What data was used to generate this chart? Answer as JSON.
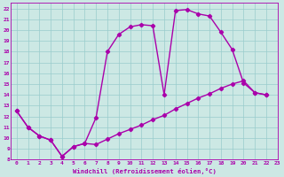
{
  "xlabel": "Windchill (Refroidissement éolien,°C)",
  "bg_color": "#cce8e4",
  "line_color": "#aa00aa",
  "grid_color": "#99cccc",
  "xlim": [
    -0.5,
    23
  ],
  "ylim": [
    8,
    22.5
  ],
  "xticks": [
    0,
    1,
    2,
    3,
    4,
    5,
    6,
    7,
    8,
    9,
    10,
    11,
    12,
    13,
    14,
    15,
    16,
    17,
    18,
    19,
    20,
    21,
    22,
    23
  ],
  "yticks": [
    8,
    9,
    10,
    11,
    12,
    13,
    14,
    15,
    16,
    17,
    18,
    19,
    20,
    21,
    22
  ],
  "upper_x": [
    0,
    1,
    2,
    3,
    4,
    5,
    6,
    7,
    8,
    9,
    10,
    11,
    12,
    13,
    14,
    15,
    16,
    17,
    18,
    19,
    20,
    21,
    22
  ],
  "upper_y": [
    12.5,
    11.0,
    10.2,
    9.8,
    8.3,
    9.2,
    9.5,
    11.9,
    18.0,
    19.6,
    20.3,
    20.5,
    20.4,
    14.0,
    21.8,
    21.9,
    21.5,
    21.3,
    19.8,
    18.2,
    15.1,
    14.2,
    14.0
  ],
  "lower_x": [
    0,
    1,
    2,
    3,
    4,
    5,
    6,
    7,
    8,
    9,
    10,
    11,
    12,
    13,
    14,
    15,
    16,
    17,
    18,
    19,
    20,
    21,
    22
  ],
  "lower_y": [
    12.5,
    11.0,
    10.2,
    9.8,
    8.3,
    9.2,
    9.5,
    9.4,
    9.9,
    10.4,
    10.8,
    11.2,
    11.7,
    12.1,
    12.7,
    13.2,
    13.7,
    14.1,
    14.6,
    15.0,
    15.3,
    14.2,
    14.0
  ],
  "marker": "D",
  "markersize": 2.2,
  "linewidth": 1.0
}
